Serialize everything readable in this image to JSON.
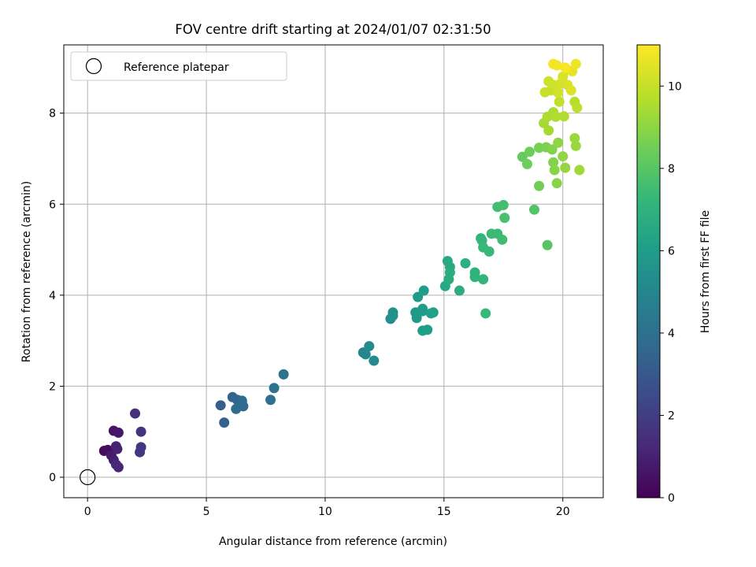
{
  "chart_data": {
    "type": "scatter",
    "title": "FOV centre drift starting at 2024/01/07 02:31:50",
    "xlabel": "Angular distance from reference (arcmin)",
    "ylabel": "Rotation from reference (arcmin)",
    "xlim": [
      -1.0,
      21.7
    ],
    "ylim": [
      -0.45,
      9.5
    ],
    "xticks": [
      0,
      5,
      10,
      15,
      20
    ],
    "yticks": [
      0,
      2,
      4,
      6,
      8
    ],
    "grid": true,
    "legend": {
      "placement": "top-left",
      "entries": [
        "Reference platepar"
      ]
    },
    "reference_point": {
      "x": 0,
      "y": 0,
      "label": "Reference platepar"
    },
    "colorbar": {
      "label": "Hours from first FF file",
      "min": 0,
      "max": 11,
      "ticks": [
        0,
        2,
        4,
        6,
        8,
        10
      ],
      "colormap": "viridis"
    },
    "points": [
      {
        "x": 0.7,
        "y": 0.58,
        "c": 0.3
      },
      {
        "x": 0.85,
        "y": 0.6,
        "c": 0.4
      },
      {
        "x": 1.1,
        "y": 1.02,
        "c": 0.6
      },
      {
        "x": 1.3,
        "y": 0.98,
        "c": 0.7
      },
      {
        "x": 1.0,
        "y": 0.48,
        "c": 0.8
      },
      {
        "x": 1.1,
        "y": 0.38,
        "c": 0.9
      },
      {
        "x": 1.2,
        "y": 0.68,
        "c": 1.0
      },
      {
        "x": 1.25,
        "y": 0.62,
        "c": 1.0
      },
      {
        "x": 1.3,
        "y": 0.22,
        "c": 1.1
      },
      {
        "x": 1.2,
        "y": 0.28,
        "c": 1.2
      },
      {
        "x": 2.0,
        "y": 1.4,
        "c": 1.5
      },
      {
        "x": 2.25,
        "y": 1.0,
        "c": 1.6
      },
      {
        "x": 2.25,
        "y": 0.66,
        "c": 1.7
      },
      {
        "x": 2.2,
        "y": 0.55,
        "c": 1.8
      },
      {
        "x": 5.6,
        "y": 1.58,
        "c": 3.3
      },
      {
        "x": 5.75,
        "y": 1.2,
        "c": 3.4
      },
      {
        "x": 6.1,
        "y": 1.76,
        "c": 3.5
      },
      {
        "x": 6.3,
        "y": 1.7,
        "c": 3.6
      },
      {
        "x": 6.4,
        "y": 1.66,
        "c": 3.6
      },
      {
        "x": 6.5,
        "y": 1.68,
        "c": 3.7
      },
      {
        "x": 6.55,
        "y": 1.56,
        "c": 3.7
      },
      {
        "x": 6.25,
        "y": 1.5,
        "c": 3.8
      },
      {
        "x": 7.7,
        "y": 1.7,
        "c": 4.0
      },
      {
        "x": 7.85,
        "y": 1.96,
        "c": 4.1
      },
      {
        "x": 8.25,
        "y": 2.26,
        "c": 4.2
      },
      {
        "x": 11.6,
        "y": 2.74,
        "c": 5.0
      },
      {
        "x": 11.7,
        "y": 2.7,
        "c": 5.1
      },
      {
        "x": 11.85,
        "y": 2.88,
        "c": 5.2
      },
      {
        "x": 12.05,
        "y": 2.56,
        "c": 5.2
      },
      {
        "x": 12.75,
        "y": 3.48,
        "c": 5.4
      },
      {
        "x": 12.85,
        "y": 3.55,
        "c": 5.5
      },
      {
        "x": 12.85,
        "y": 3.62,
        "c": 5.5
      },
      {
        "x": 13.8,
        "y": 3.62,
        "c": 5.8
      },
      {
        "x": 13.85,
        "y": 3.5,
        "c": 5.8
      },
      {
        "x": 13.9,
        "y": 3.96,
        "c": 5.9
      },
      {
        "x": 14.1,
        "y": 3.65,
        "c": 6.0
      },
      {
        "x": 14.15,
        "y": 4.1,
        "c": 6.0
      },
      {
        "x": 14.1,
        "y": 3.7,
        "c": 6.0
      },
      {
        "x": 14.1,
        "y": 3.22,
        "c": 6.1
      },
      {
        "x": 14.3,
        "y": 3.24,
        "c": 6.1
      },
      {
        "x": 14.45,
        "y": 3.6,
        "c": 6.2
      },
      {
        "x": 14.55,
        "y": 3.62,
        "c": 6.2
      },
      {
        "x": 15.05,
        "y": 4.2,
        "c": 6.5
      },
      {
        "x": 15.15,
        "y": 4.75,
        "c": 6.6
      },
      {
        "x": 15.25,
        "y": 4.62,
        "c": 6.6
      },
      {
        "x": 15.25,
        "y": 4.5,
        "c": 6.7
      },
      {
        "x": 15.2,
        "y": 4.35,
        "c": 6.7
      },
      {
        "x": 15.65,
        "y": 4.1,
        "c": 6.8
      },
      {
        "x": 15.9,
        "y": 4.7,
        "c": 6.9
      },
      {
        "x": 16.3,
        "y": 4.5,
        "c": 7.0
      },
      {
        "x": 16.3,
        "y": 4.4,
        "c": 7.0
      },
      {
        "x": 16.65,
        "y": 4.35,
        "c": 7.1
      },
      {
        "x": 16.55,
        "y": 5.25,
        "c": 7.2
      },
      {
        "x": 16.6,
        "y": 5.2,
        "c": 7.2
      },
      {
        "x": 16.65,
        "y": 5.05,
        "c": 7.3
      },
      {
        "x": 16.9,
        "y": 4.96,
        "c": 7.3
      },
      {
        "x": 16.75,
        "y": 3.6,
        "c": 7.3
      },
      {
        "x": 17.0,
        "y": 5.35,
        "c": 7.4
      },
      {
        "x": 17.25,
        "y": 5.35,
        "c": 7.4
      },
      {
        "x": 17.45,
        "y": 5.22,
        "c": 7.5
      },
      {
        "x": 17.25,
        "y": 5.94,
        "c": 7.6
      },
      {
        "x": 17.5,
        "y": 5.98,
        "c": 7.6
      },
      {
        "x": 17.55,
        "y": 5.7,
        "c": 7.7
      },
      {
        "x": 18.8,
        "y": 5.88,
        "c": 7.9
      },
      {
        "x": 19.35,
        "y": 5.1,
        "c": 8.0
      },
      {
        "x": 18.3,
        "y": 7.04,
        "c": 8.3
      },
      {
        "x": 18.6,
        "y": 7.15,
        "c": 8.4
      },
      {
        "x": 18.5,
        "y": 6.88,
        "c": 8.4
      },
      {
        "x": 19.0,
        "y": 6.4,
        "c": 8.5
      },
      {
        "x": 19.0,
        "y": 7.24,
        "c": 8.6
      },
      {
        "x": 19.3,
        "y": 7.25,
        "c": 8.7
      },
      {
        "x": 19.55,
        "y": 7.2,
        "c": 8.8
      },
      {
        "x": 19.6,
        "y": 6.92,
        "c": 8.8
      },
      {
        "x": 19.65,
        "y": 6.75,
        "c": 8.9
      },
      {
        "x": 19.75,
        "y": 6.46,
        "c": 8.9
      },
      {
        "x": 19.8,
        "y": 7.35,
        "c": 9.0
      },
      {
        "x": 20.0,
        "y": 7.05,
        "c": 9.1
      },
      {
        "x": 20.1,
        "y": 6.8,
        "c": 9.1
      },
      {
        "x": 20.5,
        "y": 7.45,
        "c": 9.2
      },
      {
        "x": 20.55,
        "y": 7.28,
        "c": 9.2
      },
      {
        "x": 20.7,
        "y": 6.75,
        "c": 9.3
      },
      {
        "x": 19.2,
        "y": 7.78,
        "c": 9.4
      },
      {
        "x": 19.4,
        "y": 7.62,
        "c": 9.4
      },
      {
        "x": 19.35,
        "y": 7.92,
        "c": 9.5
      },
      {
        "x": 19.6,
        "y": 8.02,
        "c": 9.5
      },
      {
        "x": 19.7,
        "y": 7.92,
        "c": 9.6
      },
      {
        "x": 20.05,
        "y": 7.93,
        "c": 9.6
      },
      {
        "x": 20.5,
        "y": 8.25,
        "c": 9.7
      },
      {
        "x": 20.6,
        "y": 8.12,
        "c": 9.8
      },
      {
        "x": 19.85,
        "y": 8.25,
        "c": 9.9
      },
      {
        "x": 19.25,
        "y": 8.46,
        "c": 10.0
      },
      {
        "x": 19.5,
        "y": 8.5,
        "c": 10.0
      },
      {
        "x": 19.4,
        "y": 8.7,
        "c": 10.1
      },
      {
        "x": 19.6,
        "y": 8.62,
        "c": 10.1
      },
      {
        "x": 19.8,
        "y": 8.45,
        "c": 10.2
      },
      {
        "x": 19.9,
        "y": 8.65,
        "c": 10.2
      },
      {
        "x": 20.0,
        "y": 8.8,
        "c": 10.3
      },
      {
        "x": 20.2,
        "y": 8.62,
        "c": 10.3
      },
      {
        "x": 20.35,
        "y": 8.5,
        "c": 10.4
      },
      {
        "x": 20.2,
        "y": 8.95,
        "c": 10.5
      },
      {
        "x": 20.4,
        "y": 8.92,
        "c": 10.6
      },
      {
        "x": 20.55,
        "y": 9.08,
        "c": 10.7
      },
      {
        "x": 19.6,
        "y": 9.08,
        "c": 10.8
      },
      {
        "x": 19.75,
        "y": 9.05,
        "c": 10.8
      },
      {
        "x": 20.1,
        "y": 9.0,
        "c": 10.9
      }
    ]
  }
}
